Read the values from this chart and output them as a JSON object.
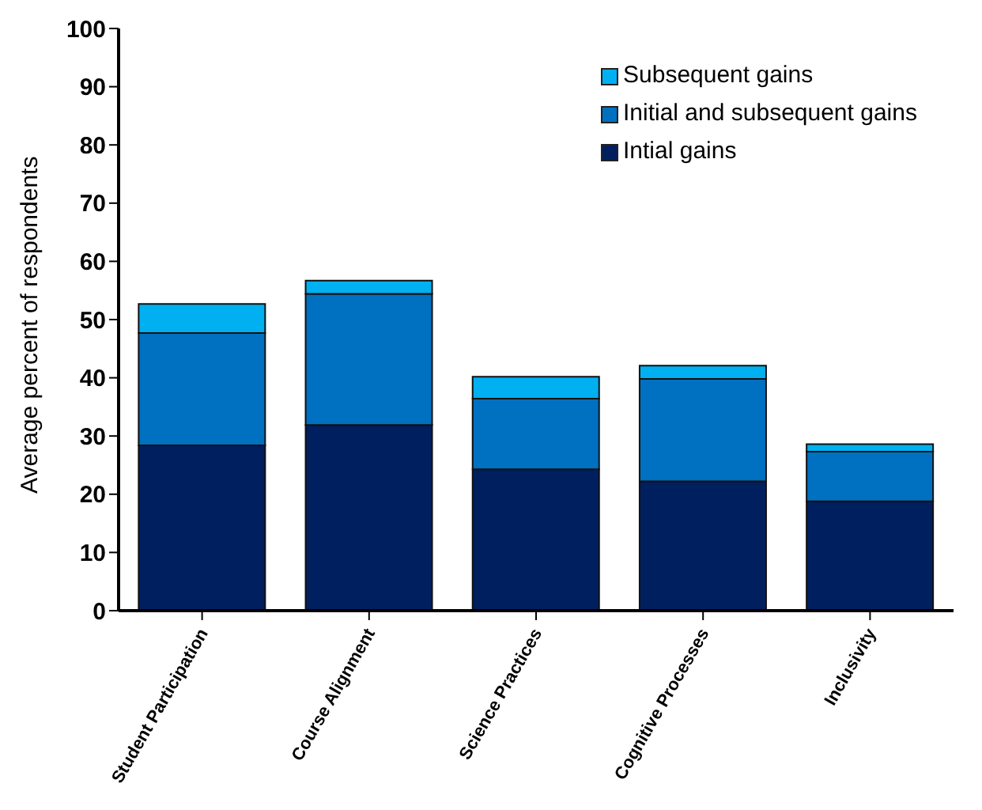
{
  "chart_data": {
    "type": "bar",
    "stacked": true,
    "ylabel": "Average percent of respondents",
    "categories": [
      "Student Participation",
      "Course Alignment",
      "Science Practices",
      "Cognitive Processes",
      "Inclusivity"
    ],
    "series": [
      {
        "name": "Intial gains",
        "color": "#001f5f",
        "values": [
          28.4,
          31.9,
          24.3,
          22.2,
          18.8
        ]
      },
      {
        "name": "Initial and subsequent gains",
        "color": "#0070c0",
        "values": [
          19.3,
          22.5,
          12.1,
          17.6,
          8.5
        ]
      },
      {
        "name": "Subsequent gains",
        "color": "#00b0f0",
        "values": [
          5.0,
          2.3,
          3.8,
          2.3,
          1.3
        ]
      }
    ],
    "ylim": [
      0,
      100
    ],
    "yticks": [
      0,
      10,
      20,
      30,
      40,
      50,
      60,
      70,
      80,
      90,
      100
    ],
    "grid": false,
    "legend": "top right"
  }
}
